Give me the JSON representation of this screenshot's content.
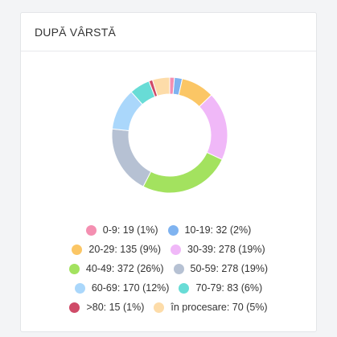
{
  "card": {
    "title": "DUPĂ VÂRSTĂ"
  },
  "chart_data": {
    "type": "pie",
    "donut": true,
    "title": "",
    "legend_placement": "bottom",
    "slices": [
      {
        "label": "0-9: 19 (1%)",
        "category": "0-9",
        "value": 19,
        "percent": 1,
        "color": "#f48fb1"
      },
      {
        "label": "10-19: 32 (2%)",
        "category": "10-19",
        "value": 32,
        "percent": 2,
        "color": "#7fb3f0"
      },
      {
        "label": "20-29: 135 (9%)",
        "category": "20-29",
        "value": 135,
        "percent": 9,
        "color": "#fbc665"
      },
      {
        "label": "30-39: 278 (19%)",
        "category": "30-39",
        "value": 278,
        "percent": 19,
        "color": "#f0b8f8"
      },
      {
        "label": "40-49: 372 (26%)",
        "category": "40-49",
        "value": 372,
        "percent": 26,
        "color": "#a3e25f"
      },
      {
        "label": "50-59: 278 (19%)",
        "category": "50-59",
        "value": 278,
        "percent": 19,
        "color": "#b6c1d3"
      },
      {
        "label": "60-69: 170 (12%)",
        "category": "60-69",
        "value": 170,
        "percent": 12,
        "color": "#aad7fb"
      },
      {
        "label": "70-79: 83 (6%)",
        "category": "70-79",
        "value": 83,
        "percent": 6,
        "color": "#68dcd6"
      },
      {
        "label": ">80: 15 (1%)",
        "category": ">80",
        "value": 15,
        "percent": 1,
        "color": "#cf4b68"
      },
      {
        "label": "în procesare: 70 (5%)",
        "category": "în procesare",
        "value": 70,
        "percent": 5,
        "color": "#fddca9"
      }
    ]
  }
}
